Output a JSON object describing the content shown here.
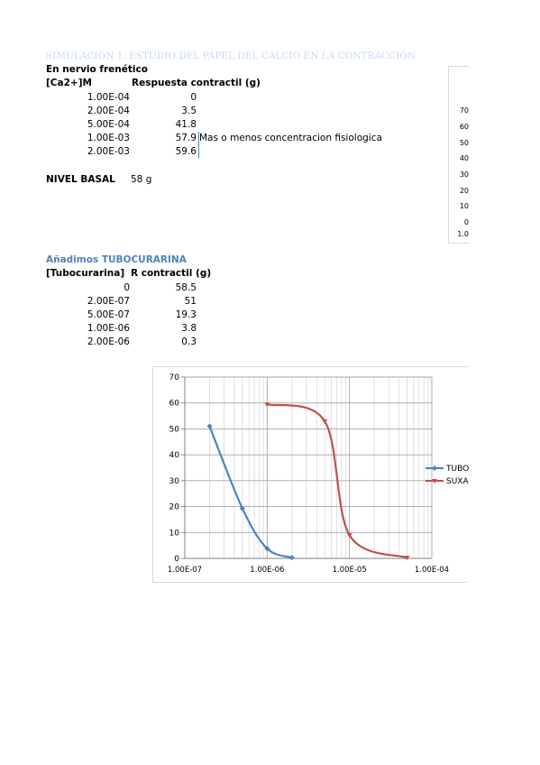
{
  "heading": "SIMULACIÓN 1. ESTUDIO DEL PAPEL DEL CALCIO EN LA CONTRACCIÓN",
  "section1": {
    "subtitle": "En nervio frenético",
    "col1": "[Ca2+]M",
    "col2": "Respuesta contractil (g)",
    "rows": [
      {
        "c": "1.00E-04",
        "r": "0"
      },
      {
        "c": "2.00E-04",
        "r": "3.5"
      },
      {
        "c": "5.00E-04",
        "r": "41.8"
      },
      {
        "c": "1.00E-03",
        "r": "57.9"
      },
      {
        "c": "2.00E-03",
        "r": "59.6"
      }
    ],
    "note": "Mas o menos concentracion fisiologica",
    "basal_label": "NIVEL BASAL",
    "basal_value": "58 g"
  },
  "cut_chart_ticks": [
    "70",
    "60",
    "50",
    "40",
    "30",
    "20",
    "10",
    "0",
    "1.0"
  ],
  "section2": {
    "title": "Añadimos TUBOCURARINA",
    "col1": "[Tubocurarina]",
    "col2": "R contractil (g)",
    "rows": [
      {
        "c": "0",
        "r": "58.5"
      },
      {
        "c": "2.00E-07",
        "r": "51"
      },
      {
        "c": "5.00E-07",
        "r": "19.3"
      },
      {
        "c": "1.00E-06",
        "r": "3.8"
      },
      {
        "c": "2.00E-06",
        "r": "0.3"
      }
    ]
  },
  "chart_data": {
    "type": "scatter",
    "x_scale": "log",
    "xlim": [
      1e-07,
      0.0001
    ],
    "ylim": [
      0,
      70
    ],
    "x_ticks": [
      "1.00E-07",
      "1.00E-06",
      "1.00E-05",
      "1.00E-04"
    ],
    "y_ticks": [
      "0",
      "10",
      "20",
      "30",
      "40",
      "50",
      "60",
      "70"
    ],
    "grid": true,
    "legend_position": "right",
    "series": [
      {
        "name": "TUBO",
        "color": "#4f81bd",
        "marker": "diamond",
        "x": [
          2e-07,
          5e-07,
          1e-06,
          2e-06
        ],
        "y": [
          51,
          19.3,
          3.8,
          0.3
        ]
      },
      {
        "name": "SUXA",
        "color": "#c0504d",
        "marker": "triangle",
        "x": [
          1e-06,
          5e-06,
          1e-05,
          5e-05
        ],
        "y": [
          59.5,
          53,
          9,
          0.3
        ]
      }
    ]
  }
}
